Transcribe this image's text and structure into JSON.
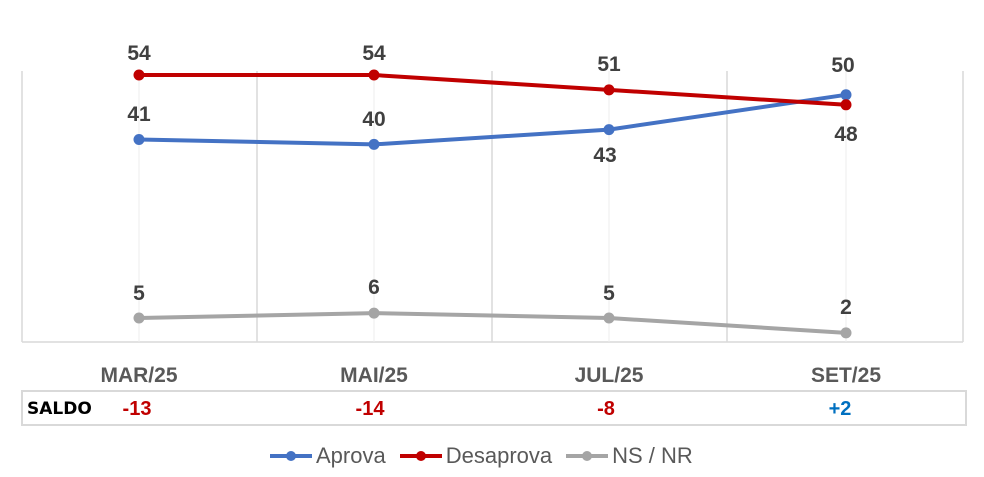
{
  "chart_data": {
    "type": "line",
    "title": "",
    "xlabel": "",
    "ylabel": "",
    "ylim": [
      0,
      55
    ],
    "grid": {
      "vertical": true,
      "horizontal": false
    },
    "legend_position": "bottom",
    "categories": [
      "MAR/25",
      "MAI/25",
      "JUL/25",
      "SET/25"
    ],
    "series": [
      {
        "name": "Aprova",
        "color": "#4472c4",
        "values": [
          41,
          40,
          43,
          50
        ]
      },
      {
        "name": "Desaprova",
        "color": "#c00000",
        "values": [
          54,
          54,
          51,
          48
        ]
      },
      {
        "name": "NS / NR",
        "color": "#a5a5a5",
        "values": [
          5,
          6,
          5,
          2
        ]
      }
    ],
    "saldo": {
      "label": "SALDO",
      "values": [
        "-13",
        "-14",
        "-8",
        "+2"
      ],
      "colors": [
        "#c00000",
        "#c00000",
        "#c00000",
        "#0070c0"
      ]
    }
  },
  "labels": {
    "aprova": [
      "41",
      "40",
      "43",
      "50"
    ],
    "desaprova": [
      "54",
      "54",
      "51",
      "48"
    ],
    "nsnr": [
      "5",
      "6",
      "5",
      "2"
    ]
  }
}
